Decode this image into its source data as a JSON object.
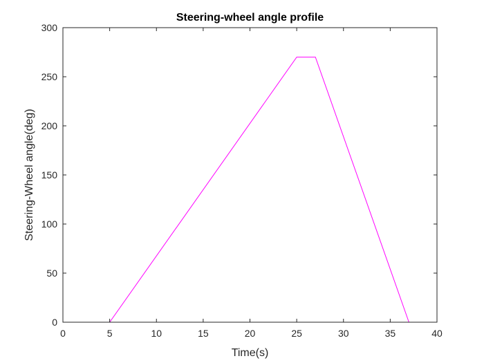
{
  "chart_data": {
    "type": "line",
    "title": "Steering-wheel angle profile",
    "xlabel": "Time(s)",
    "ylabel": "Steering-Wheel angle(deg)",
    "xlim": [
      0,
      40
    ],
    "ylim": [
      0,
      300
    ],
    "xticks": [
      0,
      5,
      10,
      15,
      20,
      25,
      30,
      35,
      40
    ],
    "yticks": [
      0,
      50,
      100,
      150,
      200,
      250,
      300
    ],
    "xtick_labels": [
      "0",
      "5",
      "10",
      "15",
      "20",
      "25",
      "30",
      "35",
      "40"
    ],
    "ytick_labels": [
      "0",
      "50",
      "100",
      "150",
      "200",
      "250",
      "300"
    ],
    "grid": false,
    "legend": "none",
    "series": [
      {
        "color": "#ff00ff",
        "x": [
          0,
          5,
          25,
          27,
          37
        ],
        "y": [
          0,
          0,
          270,
          270,
          0
        ]
      }
    ]
  }
}
